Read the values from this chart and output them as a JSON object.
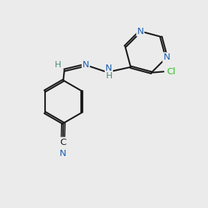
{
  "bg_color": "#ebebeb",
  "bond_color": "#1a1a1a",
  "atom_colors": {
    "N": "#1a5fb4",
    "Cl": "#2ec027",
    "C": "#1a1a1a",
    "H": "#4a8a7a"
  },
  "figsize": [
    3.0,
    3.0
  ],
  "dpi": 100
}
